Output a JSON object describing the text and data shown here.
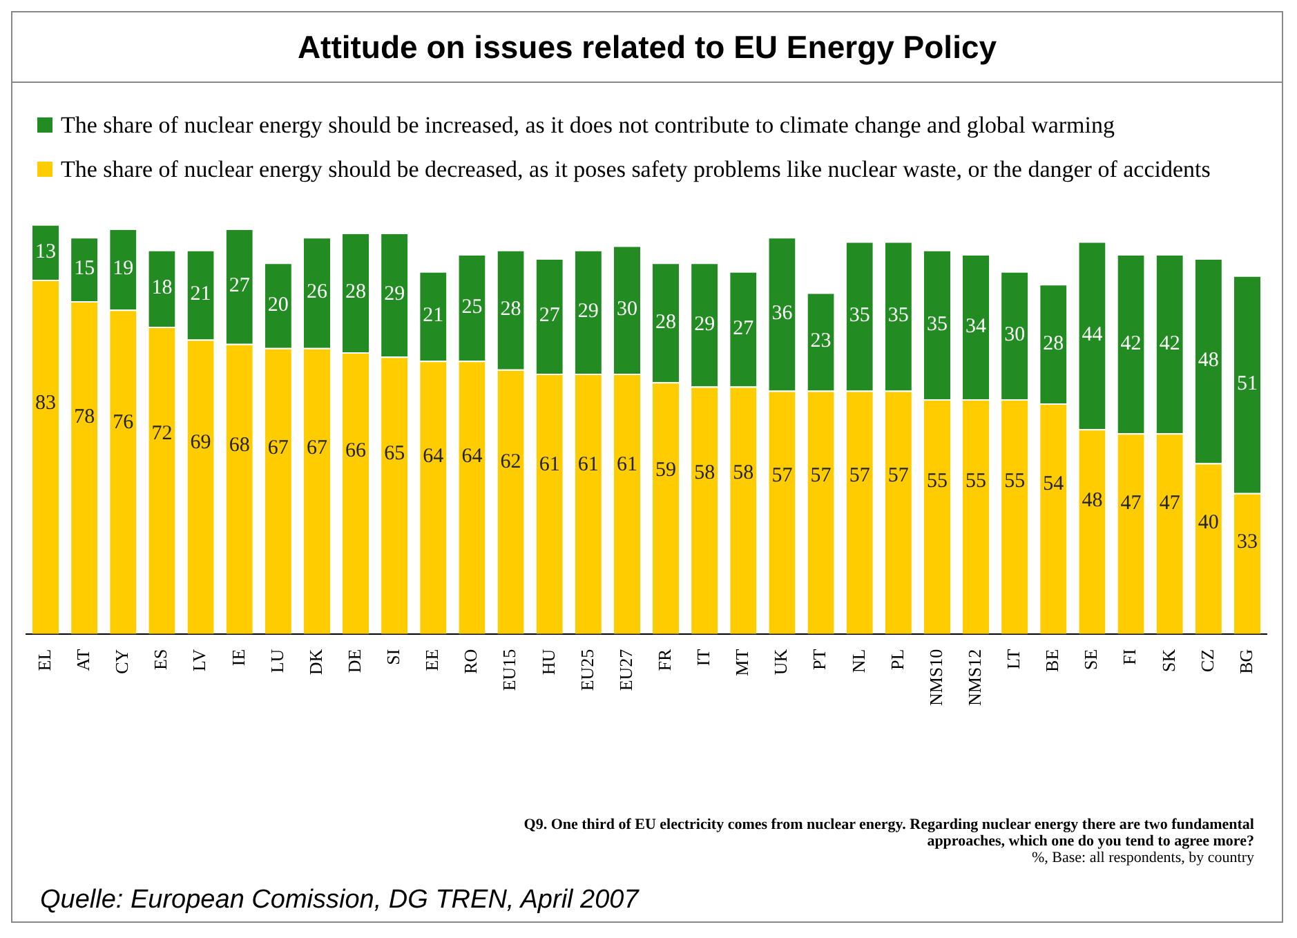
{
  "chart_data": {
    "type": "bar",
    "title": "Attitude on issues related to EU Energy Policy",
    "stacked": true,
    "grid": false,
    "legend": "top left",
    "data_labels": true,
    "categories": [
      "EL",
      "AT",
      "CY",
      "ES",
      "LV",
      "IE",
      "LU",
      "DK",
      "DE",
      "SI",
      "EE",
      "RO",
      "EU15",
      "HU",
      "EU25",
      "EU27",
      "FR",
      "IT",
      "MT",
      "UK",
      "PT",
      "NL",
      "PL",
      "NMS10",
      "NMS12",
      "LT",
      "BE",
      "SE",
      "FI",
      "SK",
      "CZ",
      "BG"
    ],
    "series": [
      {
        "name": "The share of nuclear energy should be decreased, as it poses safety problems like nuclear waste, or the danger of accidents",
        "color": "#ffcc00",
        "values": [
          83,
          78,
          76,
          72,
          69,
          68,
          67,
          67,
          66,
          65,
          64,
          64,
          62,
          61,
          61,
          61,
          59,
          58,
          58,
          57,
          57,
          57,
          57,
          55,
          55,
          55,
          54,
          48,
          47,
          47,
          40,
          33
        ]
      },
      {
        "name": "The share of nuclear energy should be increased, as it does not contribute to climate change and global warming",
        "color": "#228b22",
        "values": [
          13,
          15,
          19,
          18,
          21,
          27,
          20,
          26,
          28,
          29,
          21,
          25,
          28,
          27,
          29,
          30,
          28,
          29,
          27,
          36,
          23,
          35,
          35,
          35,
          34,
          30,
          28,
          44,
          42,
          42,
          48,
          51
        ]
      }
    ],
    "annotations": [
      "Q9. One third of EU electricity comes from nuclear energy. Regarding nuclear energy there are two fundamental approaches, which one do you tend to agree more?",
      "%, Base: all respondents, by country",
      "Quelle: European Comission, DG TREN, April 2007"
    ]
  }
}
